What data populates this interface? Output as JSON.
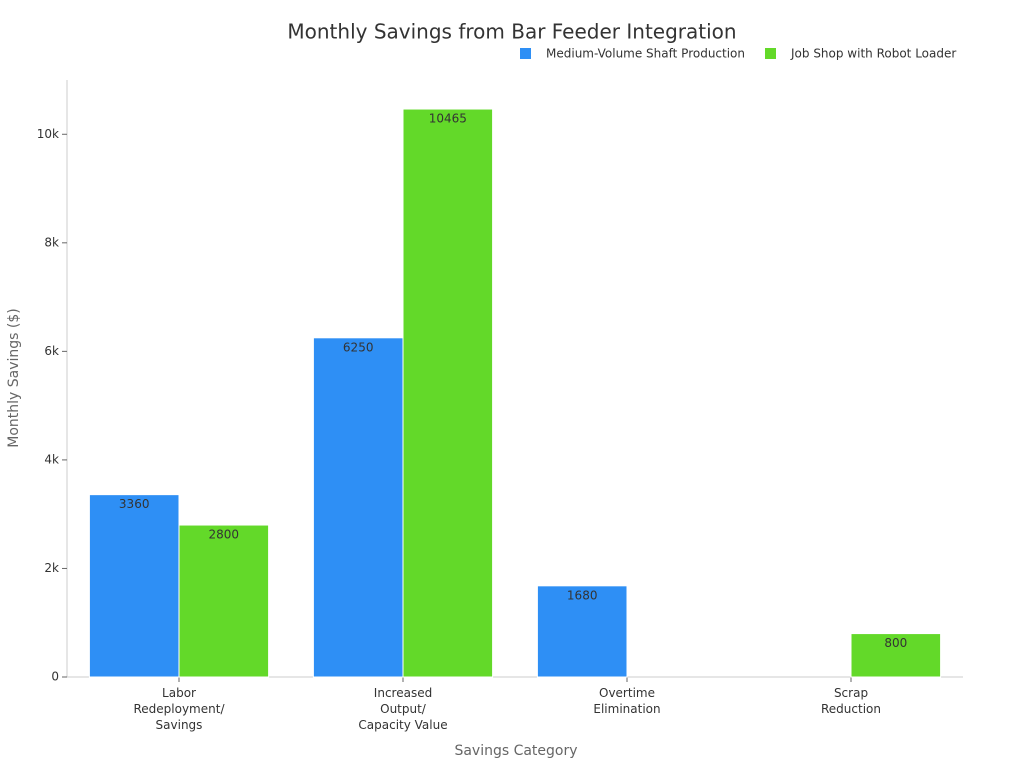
{
  "chart_data": {
    "type": "bar",
    "title": "Monthly Savings from Bar Feeder Integration",
    "x_label": "Savings Category",
    "y_label": "Monthly Savings ($)",
    "categories": [
      [
        "Labor",
        "Redeployment/",
        "Savings"
      ],
      [
        "Increased",
        "Output/",
        "Capacity Value"
      ],
      [
        "Overtime",
        "Elimination"
      ],
      [
        "Scrap",
        "Reduction"
      ]
    ],
    "series": [
      {
        "name": "Medium-Volume Shaft Production",
        "color": "#2e8ff5",
        "values": [
          3360,
          6250,
          1680,
          null
        ]
      },
      {
        "name": "Job Shop with Robot Loader",
        "color": "#63d929",
        "values": [
          2800,
          10465,
          null,
          800
        ]
      }
    ],
    "ylim": [
      0,
      11000
    ],
    "yticks": [
      0,
      {
        "value": 2000,
        "label": "2k"
      },
      {
        "value": 4000,
        "label": "4k"
      },
      {
        "value": 6000,
        "label": "6k"
      },
      {
        "value": 8000,
        "label": "8k"
      },
      {
        "value": 10000,
        "label": "10k"
      }
    ],
    "legend": "top-right",
    "grid": false
  }
}
